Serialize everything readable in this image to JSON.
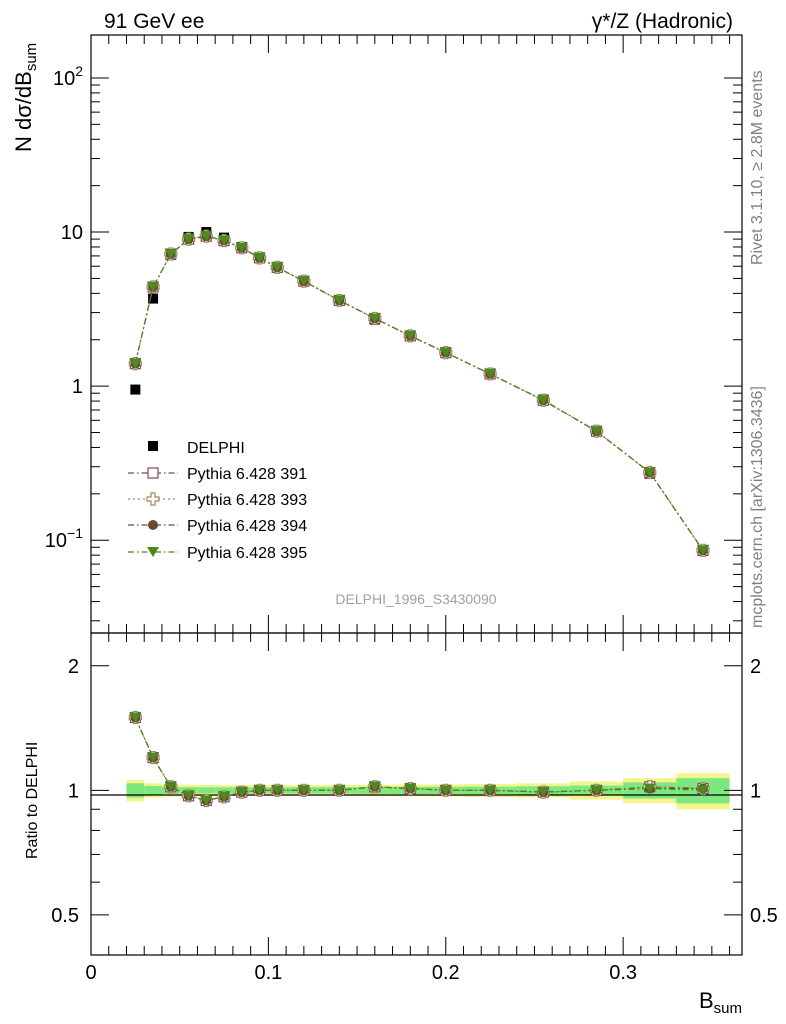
{
  "header": {
    "left_label": "91 GeV ee",
    "right_label": "γ*/Z (Hadronic)"
  },
  "side_labels": {
    "rivet": "Rivet 3.1.10, ≥ 2.8M events",
    "mcplots": "mcplots.cern.ch [arXiv:1306.3436]"
  },
  "watermark": "DELPHI_1996_S3430090",
  "chart_data": [
    {
      "type": "scatter",
      "panel": "main",
      "ylabel": "N dσ/dB",
      "ylabel_sub": "sum",
      "y_scale": "log",
      "ylim": [
        0.025,
        190
      ],
      "xlim": [
        0,
        0.367
      ],
      "y_ticks": [
        {
          "value": 100,
          "base": "10",
          "exp": "2"
        },
        {
          "value": 10,
          "base": "10",
          "exp": ""
        },
        {
          "value": 1,
          "base": "1",
          "exp": ""
        },
        {
          "value": 0.1,
          "base": "10",
          "exp": "−1"
        }
      ],
      "legend_position": "center-left",
      "series": [
        {
          "name": "DELPHI",
          "marker": "filled-square",
          "color": "#000000",
          "line": "none",
          "x": [
            0.025,
            0.035,
            0.045,
            0.055,
            0.065,
            0.075,
            0.085,
            0.095,
            0.105,
            0.12,
            0.14,
            0.16,
            0.18,
            0.2,
            0.225,
            0.255,
            0.285,
            0.315,
            0.345
          ],
          "y": [
            0.95,
            3.7,
            7.1,
            9.3,
            10.0,
            9.2,
            8.0,
            6.8,
            5.9,
            4.8,
            3.6,
            2.7,
            2.1,
            1.65,
            1.2,
            0.82,
            0.51,
            0.27,
            0.085
          ]
        },
        {
          "name": "Pythia 6.428 391",
          "marker": "open-square",
          "color": "#7b4a5e",
          "line": "dashdot",
          "x": [
            0.025,
            0.035,
            0.045,
            0.055,
            0.065,
            0.075,
            0.085,
            0.095,
            0.105,
            0.12,
            0.14,
            0.16,
            0.18,
            0.2,
            0.225,
            0.255,
            0.285,
            0.315,
            0.345
          ],
          "y": [
            1.4,
            4.4,
            7.2,
            9.0,
            9.4,
            8.8,
            7.9,
            6.8,
            5.9,
            4.8,
            3.6,
            2.75,
            2.12,
            1.65,
            1.2,
            0.81,
            0.51,
            0.275,
            0.086
          ]
        },
        {
          "name": "Pythia 6.428 393",
          "marker": "open-cross",
          "color": "#a0895a",
          "line": "dotted",
          "x": [
            0.025,
            0.035,
            0.045,
            0.055,
            0.065,
            0.075,
            0.085,
            0.095,
            0.105,
            0.12,
            0.14,
            0.16,
            0.18,
            0.2,
            0.225,
            0.255,
            0.285,
            0.315,
            0.345
          ],
          "y": [
            1.4,
            4.4,
            7.2,
            9.0,
            9.4,
            8.8,
            7.9,
            6.8,
            5.9,
            4.8,
            3.6,
            2.75,
            2.12,
            1.65,
            1.2,
            0.81,
            0.51,
            0.275,
            0.086
          ]
        },
        {
          "name": "Pythia 6.428 394",
          "marker": "filled-circle",
          "color": "#6b4a2e",
          "line": "dashdot",
          "x": [
            0.025,
            0.035,
            0.045,
            0.055,
            0.065,
            0.075,
            0.085,
            0.095,
            0.105,
            0.12,
            0.14,
            0.16,
            0.18,
            0.2,
            0.225,
            0.255,
            0.285,
            0.315,
            0.345
          ],
          "y": [
            1.4,
            4.4,
            7.2,
            9.0,
            9.4,
            8.8,
            7.9,
            6.8,
            5.9,
            4.8,
            3.6,
            2.75,
            2.12,
            1.65,
            1.2,
            0.81,
            0.51,
            0.275,
            0.086
          ]
        },
        {
          "name": "Pythia 6.428 395",
          "marker": "filled-triangle-down",
          "color": "#4a8a1e",
          "line": "dashdot",
          "x": [
            0.025,
            0.035,
            0.045,
            0.055,
            0.065,
            0.075,
            0.085,
            0.095,
            0.105,
            0.12,
            0.14,
            0.16,
            0.18,
            0.2,
            0.225,
            0.255,
            0.285,
            0.315,
            0.345
          ],
          "y": [
            1.4,
            4.4,
            7.2,
            9.0,
            9.4,
            8.8,
            7.9,
            6.8,
            5.9,
            4.8,
            3.6,
            2.75,
            2.12,
            1.65,
            1.2,
            0.81,
            0.51,
            0.275,
            0.086
          ]
        }
      ]
    },
    {
      "type": "scatter",
      "panel": "ratio",
      "ylabel": "Ratio to DELPHI",
      "xlabel": "B",
      "xlabel_sub": "sum",
      "y_scale": "log",
      "ylim": [
        0.4,
        2.4
      ],
      "xlim": [
        0,
        0.367
      ],
      "y_ticks": [
        {
          "value": 2,
          "label": "2"
        },
        {
          "value": 1,
          "label": "1"
        },
        {
          "value": 0.5,
          "label": "0.5"
        }
      ],
      "x_ticks": [
        {
          "value": 0,
          "label": "0"
        },
        {
          "value": 0.1,
          "label": "0.1"
        },
        {
          "value": 0.2,
          "label": "0.2"
        },
        {
          "value": 0.3,
          "label": "0.3"
        }
      ],
      "uncertainty_bands": {
        "bins": [
          [
            0.02,
            0.03
          ],
          [
            0.03,
            0.04
          ],
          [
            0.04,
            0.05
          ],
          [
            0.05,
            0.06
          ],
          [
            0.06,
            0.07
          ],
          [
            0.07,
            0.08
          ],
          [
            0.08,
            0.09
          ],
          [
            0.09,
            0.1
          ],
          [
            0.1,
            0.11
          ],
          [
            0.11,
            0.13
          ],
          [
            0.13,
            0.15
          ],
          [
            0.15,
            0.17
          ],
          [
            0.17,
            0.19
          ],
          [
            0.19,
            0.21
          ],
          [
            0.21,
            0.24
          ],
          [
            0.24,
            0.27
          ],
          [
            0.27,
            0.3
          ],
          [
            0.3,
            0.33
          ],
          [
            0.33,
            0.36
          ]
        ],
        "stat_half_width": [
          0.04,
          0.025,
          0.02,
          0.018,
          0.017,
          0.017,
          0.017,
          0.017,
          0.017,
          0.018,
          0.018,
          0.019,
          0.02,
          0.02,
          0.021,
          0.023,
          0.027,
          0.045,
          0.07
        ],
        "total_half_width": [
          0.06,
          0.04,
          0.035,
          0.032,
          0.03,
          0.03,
          0.03,
          0.03,
          0.03,
          0.03,
          0.03,
          0.032,
          0.033,
          0.034,
          0.036,
          0.04,
          0.05,
          0.07,
          0.1
        ],
        "inner_color": "#7de87d",
        "outer_color": "#f4f48c"
      },
      "series": [
        {
          "name": "Pythia 6.428 391",
          "x": [
            0.025,
            0.035,
            0.045,
            0.055,
            0.065,
            0.075,
            0.085,
            0.095,
            0.105,
            0.12,
            0.14,
            0.16,
            0.18,
            0.2,
            0.225,
            0.255,
            0.285,
            0.315,
            0.345
          ],
          "y": [
            1.5,
            1.2,
            1.02,
            0.97,
            0.945,
            0.965,
            0.99,
            1.0,
            1.0,
            1.0,
            1.0,
            1.02,
            1.01,
            1.0,
            1.0,
            0.99,
            1.0,
            1.02,
            1.01
          ]
        },
        {
          "name": "Pythia 6.428 393",
          "x": [
            0.025,
            0.035,
            0.045,
            0.055,
            0.065,
            0.075,
            0.085,
            0.095,
            0.105,
            0.12,
            0.14,
            0.16,
            0.18,
            0.2,
            0.225,
            0.255,
            0.285,
            0.315,
            0.345
          ],
          "y": [
            1.5,
            1.2,
            1.02,
            0.97,
            0.945,
            0.965,
            0.99,
            1.0,
            1.0,
            1.0,
            1.0,
            1.02,
            1.01,
            1.0,
            1.0,
            0.99,
            1.0,
            1.02,
            1.01
          ]
        },
        {
          "name": "Pythia 6.428 394",
          "x": [
            0.025,
            0.035,
            0.045,
            0.055,
            0.065,
            0.075,
            0.085,
            0.095,
            0.105,
            0.12,
            0.14,
            0.16,
            0.18,
            0.2,
            0.225,
            0.255,
            0.285,
            0.315,
            0.345
          ],
          "y": [
            1.5,
            1.2,
            1.02,
            0.97,
            0.945,
            0.965,
            0.99,
            1.0,
            1.0,
            1.0,
            1.0,
            1.02,
            1.01,
            1.0,
            1.0,
            0.99,
            1.0,
            1.01,
            1.01
          ]
        },
        {
          "name": "Pythia 6.428 395",
          "x": [
            0.025,
            0.035,
            0.045,
            0.055,
            0.065,
            0.075,
            0.085,
            0.095,
            0.105,
            0.12,
            0.14,
            0.16,
            0.18,
            0.2,
            0.225,
            0.255,
            0.285,
            0.315,
            0.345
          ],
          "y": [
            1.5,
            1.2,
            1.02,
            0.97,
            0.945,
            0.965,
            0.99,
            1.0,
            1.0,
            1.0,
            1.0,
            1.02,
            1.01,
            1.0,
            1.0,
            0.99,
            1.0,
            1.01,
            1.0
          ]
        }
      ]
    }
  ]
}
